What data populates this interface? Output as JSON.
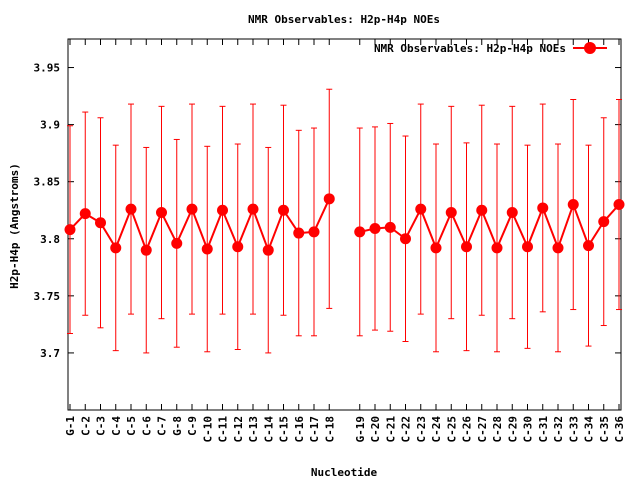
{
  "chart_data": {
    "type": "line",
    "title": "NMR Observables: H2p-H4p NOEs",
    "xlabel": "Nucleotide",
    "ylabel": "H2p-H4p (Angstroms)",
    "ylim": [
      3.65,
      3.975
    ],
    "yticks": [
      "3.7",
      "3.75",
      "3.8",
      "3.85",
      "3.9",
      "3.95"
    ],
    "legend": {
      "position": "top-right",
      "label": "NMR Observables: H2p-H4p NOEs"
    },
    "grid": false,
    "color": "#ff0000",
    "series": [
      {
        "name": "NMR Observables: H2p-H4p NOEs",
        "segments": [
          {
            "points": [
              {
                "label": "G-1",
                "y": 3.808,
                "err": 0.091
              },
              {
                "label": "C-2",
                "y": 3.822,
                "err": 0.089
              },
              {
                "label": "C-3",
                "y": 3.814,
                "err": 0.092
              },
              {
                "label": "C-4",
                "y": 3.792,
                "err": 0.09
              },
              {
                "label": "C-5",
                "y": 3.826,
                "err": 0.092
              },
              {
                "label": "C-6",
                "y": 3.79,
                "err": 0.09
              },
              {
                "label": "C-7",
                "y": 3.823,
                "err": 0.093
              },
              {
                "label": "G-8",
                "y": 3.796,
                "err": 0.091
              },
              {
                "label": "C-9",
                "y": 3.826,
                "err": 0.092
              },
              {
                "label": "C-10",
                "y": 3.791,
                "err": 0.09
              },
              {
                "label": "C-11",
                "y": 3.825,
                "err": 0.091
              },
              {
                "label": "C-12",
                "y": 3.793,
                "err": 0.09
              },
              {
                "label": "C-13",
                "y": 3.826,
                "err": 0.092
              },
              {
                "label": "C-14",
                "y": 3.79,
                "err": 0.09
              },
              {
                "label": "C-15",
                "y": 3.825,
                "err": 0.092
              },
              {
                "label": "C-16",
                "y": 3.805,
                "err": 0.09
              },
              {
                "label": "C-17",
                "y": 3.806,
                "err": 0.091
              },
              {
                "label": "C-18",
                "y": 3.835,
                "err": 0.096
              }
            ]
          },
          {
            "points": [
              {
                "label": "G-19",
                "y": 3.806,
                "err": 0.091
              },
              {
                "label": "C-20",
                "y": 3.809,
                "err": 0.089
              },
              {
                "label": "C-21",
                "y": 3.81,
                "err": 0.091
              },
              {
                "label": "C-22",
                "y": 3.8,
                "err": 0.09
              },
              {
                "label": "C-23",
                "y": 3.826,
                "err": 0.092
              },
              {
                "label": "C-24",
                "y": 3.792,
                "err": 0.091
              },
              {
                "label": "C-25",
                "y": 3.823,
                "err": 0.093
              },
              {
                "label": "C-26",
                "y": 3.793,
                "err": 0.091
              },
              {
                "label": "C-27",
                "y": 3.825,
                "err": 0.092
              },
              {
                "label": "C-28",
                "y": 3.792,
                "err": 0.091
              },
              {
                "label": "C-29",
                "y": 3.823,
                "err": 0.093
              },
              {
                "label": "C-30",
                "y": 3.793,
                "err": 0.089
              },
              {
                "label": "C-31",
                "y": 3.827,
                "err": 0.091
              },
              {
                "label": "C-32",
                "y": 3.792,
                "err": 0.091
              },
              {
                "label": "C-33",
                "y": 3.83,
                "err": 0.092
              },
              {
                "label": "C-34",
                "y": 3.794,
                "err": 0.088
              },
              {
                "label": "C-35",
                "y": 3.815,
                "err": 0.091
              },
              {
                "label": "C-36",
                "y": 3.83,
                "err": 0.092
              }
            ]
          }
        ]
      }
    ]
  }
}
